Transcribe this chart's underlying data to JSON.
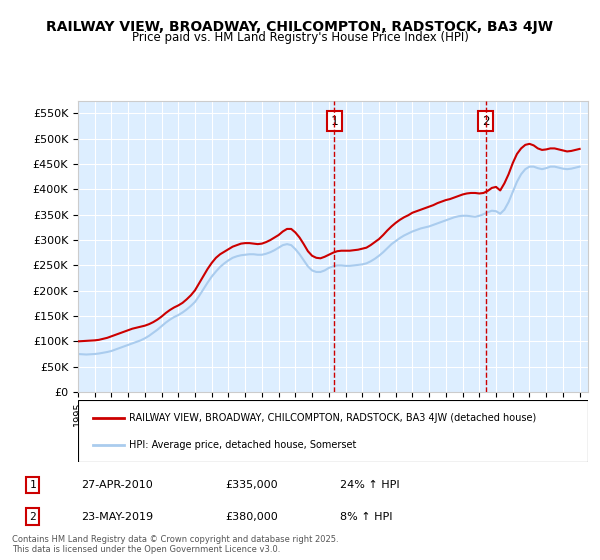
{
  "title": "RAILWAY VIEW, BROADWAY, CHILCOMPTON, RADSTOCK, BA3 4JW",
  "subtitle": "Price paid vs. HM Land Registry's House Price Index (HPI)",
  "bg_color": "#ddeeff",
  "plot_bg_color": "#ddeeff",
  "red_line_color": "#cc0000",
  "blue_line_color": "#aaccee",
  "vline_color": "#cc0000",
  "ylim": [
    0,
    575000
  ],
  "yticks": [
    0,
    50000,
    100000,
    150000,
    200000,
    250000,
    300000,
    350000,
    400000,
    450000,
    500000,
    550000
  ],
  "ytick_labels": [
    "£0",
    "£50K",
    "£100K",
    "£150K",
    "£200K",
    "£250K",
    "£300K",
    "£350K",
    "£400K",
    "£450K",
    "£500K",
    "£550K"
  ],
  "xlim_start": 1995.0,
  "xlim_end": 2025.5,
  "sale1_x": 2010.32,
  "sale1_y": 335000,
  "sale1_label": "1",
  "sale1_date": "27-APR-2010",
  "sale1_price": "£335,000",
  "sale1_hpi": "24% ↑ HPI",
  "sale2_x": 2019.39,
  "sale2_y": 380000,
  "sale2_label": "2",
  "sale2_date": "23-MAY-2019",
  "sale2_price": "£380,000",
  "sale2_hpi": "8% ↑ HPI",
  "legend_line1": "RAILWAY VIEW, BROADWAY, CHILCOMPTON, RADSTOCK, BA3 4JW (detached house)",
  "legend_line2": "HPI: Average price, detached house, Somerset",
  "footer": "Contains HM Land Registry data © Crown copyright and database right 2025.\nThis data is licensed under the Open Government Licence v3.0.",
  "hpi_years": [
    1995,
    1995.25,
    1995.5,
    1995.75,
    1996,
    1996.25,
    1996.5,
    1996.75,
    1997,
    1997.25,
    1997.5,
    1997.75,
    1998,
    1998.25,
    1998.5,
    1998.75,
    1999,
    1999.25,
    1999.5,
    1999.75,
    2000,
    2000.25,
    2000.5,
    2000.75,
    2001,
    2001.25,
    2001.5,
    2001.75,
    2002,
    2002.25,
    2002.5,
    2002.75,
    2003,
    2003.25,
    2003.5,
    2003.75,
    2004,
    2004.25,
    2004.5,
    2004.75,
    2005,
    2005.25,
    2005.5,
    2005.75,
    2006,
    2006.25,
    2006.5,
    2006.75,
    2007,
    2007.25,
    2007.5,
    2007.75,
    2008,
    2008.25,
    2008.5,
    2008.75,
    2009,
    2009.25,
    2009.5,
    2009.75,
    2010,
    2010.25,
    2010.5,
    2010.75,
    2011,
    2011.25,
    2011.5,
    2011.75,
    2012,
    2012.25,
    2012.5,
    2012.75,
    2013,
    2013.25,
    2013.5,
    2013.75,
    2014,
    2014.25,
    2014.5,
    2014.75,
    2015,
    2015.25,
    2015.5,
    2015.75,
    2016,
    2016.25,
    2016.5,
    2016.75,
    2017,
    2017.25,
    2017.5,
    2017.75,
    2018,
    2018.25,
    2018.5,
    2018.75,
    2019,
    2019.25,
    2019.5,
    2019.75,
    2020,
    2020.25,
    2020.5,
    2020.75,
    2021,
    2021.25,
    2021.5,
    2021.75,
    2022,
    2022.25,
    2022.5,
    2022.75,
    2023,
    2023.25,
    2023.5,
    2023.75,
    2024,
    2024.25,
    2024.5,
    2024.75,
    2025
  ],
  "hpi_values": [
    75000,
    74500,
    74000,
    74500,
    75000,
    76000,
    77500,
    79000,
    81000,
    84000,
    87000,
    90000,
    93000,
    96000,
    99000,
    102000,
    106000,
    111000,
    117000,
    123000,
    130000,
    137000,
    143000,
    148000,
    152000,
    157000,
    163000,
    170000,
    178000,
    190000,
    203000,
    216000,
    228000,
    238000,
    247000,
    254000,
    260000,
    265000,
    268000,
    270000,
    271000,
    272000,
    272000,
    271000,
    271000,
    273000,
    276000,
    280000,
    285000,
    290000,
    292000,
    290000,
    282000,
    272000,
    260000,
    248000,
    240000,
    237000,
    237000,
    240000,
    245000,
    248000,
    250000,
    250000,
    249000,
    249000,
    250000,
    251000,
    252000,
    254000,
    258000,
    263000,
    269000,
    276000,
    284000,
    292000,
    298000,
    304000,
    309000,
    313000,
    317000,
    320000,
    323000,
    325000,
    327000,
    330000,
    333000,
    336000,
    339000,
    342000,
    345000,
    347000,
    348000,
    348000,
    347000,
    346000,
    348000,
    351000,
    355000,
    358000,
    357000,
    352000,
    360000,
    375000,
    395000,
    415000,
    430000,
    440000,
    445000,
    445000,
    442000,
    440000,
    442000,
    445000,
    445000,
    443000,
    441000,
    440000,
    441000,
    443000,
    445000
  ],
  "red_years": [
    1995,
    1995.25,
    1995.5,
    1995.75,
    1996,
    1996.25,
    1996.5,
    1996.75,
    1997,
    1997.25,
    1997.5,
    1997.75,
    1998,
    1998.25,
    1998.5,
    1998.75,
    1999,
    1999.25,
    1999.5,
    1999.75,
    2000,
    2000.25,
    2000.5,
    2000.75,
    2001,
    2001.25,
    2001.5,
    2001.75,
    2002,
    2002.25,
    2002.5,
    2002.75,
    2003,
    2003.25,
    2003.5,
    2003.75,
    2004,
    2004.25,
    2004.5,
    2004.75,
    2005,
    2005.25,
    2005.5,
    2005.75,
    2006,
    2006.25,
    2006.5,
    2006.75,
    2007,
    2007.25,
    2007.5,
    2007.75,
    2008,
    2008.25,
    2008.5,
    2008.75,
    2009,
    2009.25,
    2009.5,
    2009.75,
    2010,
    2010.25,
    2010.5,
    2010.75,
    2011,
    2011.25,
    2011.5,
    2011.75,
    2012,
    2012.25,
    2012.5,
    2012.75,
    2013,
    2013.25,
    2013.5,
    2013.75,
    2014,
    2014.25,
    2014.5,
    2014.75,
    2015,
    2015.25,
    2015.5,
    2015.75,
    2016,
    2016.25,
    2016.5,
    2016.75,
    2017,
    2017.25,
    2017.5,
    2017.75,
    2018,
    2018.25,
    2018.5,
    2018.75,
    2019,
    2019.25,
    2019.5,
    2019.75,
    2020,
    2020.25,
    2020.5,
    2020.75,
    2021,
    2021.25,
    2021.5,
    2021.75,
    2022,
    2022.25,
    2022.5,
    2022.75,
    2023,
    2023.25,
    2023.5,
    2023.75,
    2024,
    2024.25,
    2024.5,
    2024.75,
    2025
  ],
  "red_values": [
    100000,
    100500,
    101000,
    101500,
    102000,
    103000,
    105000,
    107000,
    110000,
    113000,
    116000,
    119000,
    122000,
    125000,
    127000,
    129000,
    131000,
    134000,
    138000,
    143000,
    149000,
    156000,
    162000,
    167000,
    171000,
    176000,
    183000,
    191000,
    201000,
    215000,
    229000,
    243000,
    255000,
    265000,
    272000,
    277000,
    282000,
    287000,
    290000,
    293000,
    294000,
    294000,
    293000,
    292000,
    293000,
    296000,
    300000,
    305000,
    310000,
    317000,
    322000,
    322000,
    315000,
    305000,
    292000,
    278000,
    269000,
    265000,
    264000,
    267000,
    271000,
    275000,
    278000,
    279000,
    279000,
    279000,
    280000,
    281000,
    283000,
    285000,
    290000,
    296000,
    302000,
    310000,
    319000,
    327000,
    334000,
    340000,
    345000,
    349000,
    354000,
    357000,
    360000,
    363000,
    366000,
    369000,
    373000,
    376000,
    379000,
    381000,
    384000,
    387000,
    390000,
    392000,
    393000,
    393000,
    392000,
    393000,
    397000,
    403000,
    405000,
    398000,
    412000,
    430000,
    452000,
    470000,
    481000,
    488000,
    490000,
    487000,
    481000,
    478000,
    479000,
    481000,
    481000,
    479000,
    477000,
    475000,
    476000,
    478000,
    480000
  ]
}
